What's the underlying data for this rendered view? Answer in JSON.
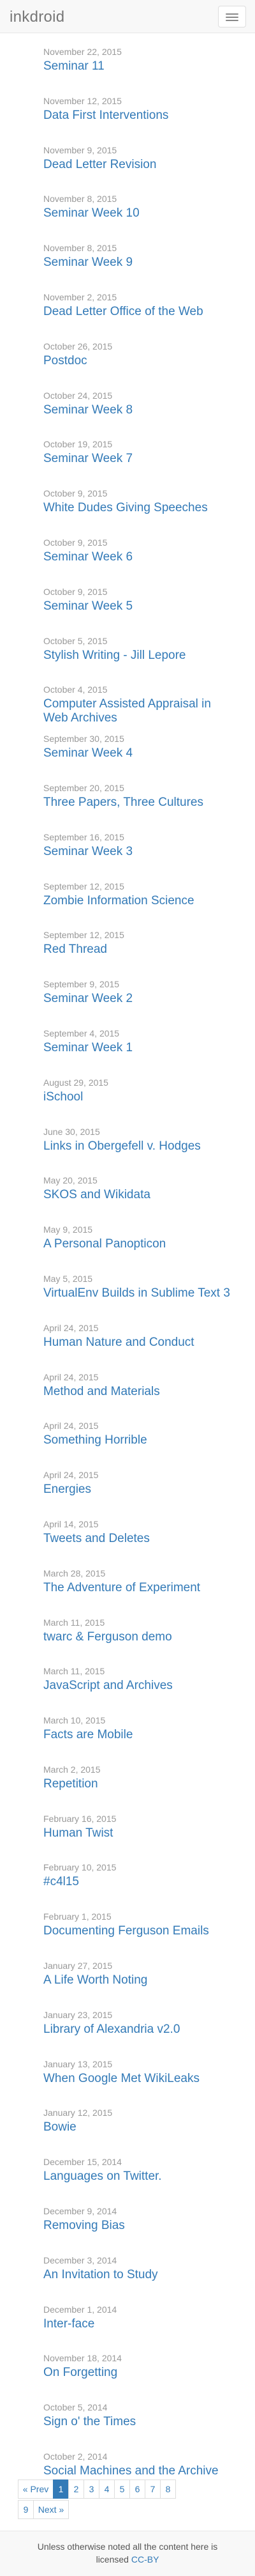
{
  "site": {
    "brand": "inkdroid",
    "menu_icon": "hamburger-menu-icon"
  },
  "posts": [
    {
      "date": "November 22, 2015",
      "title": "Seminar 11"
    },
    {
      "date": "November 12, 2015",
      "title": "Data First Interventions"
    },
    {
      "date": "November 9, 2015",
      "title": "Dead Letter Revision"
    },
    {
      "date": "November 8, 2015",
      "title": "Seminar Week 10"
    },
    {
      "date": "November 8, 2015",
      "title": "Seminar Week 9"
    },
    {
      "date": "November 2, 2015",
      "title": "Dead Letter Office of the Web"
    },
    {
      "date": "October 26, 2015",
      "title": "Postdoc"
    },
    {
      "date": "October 24, 2015",
      "title": "Seminar Week 8"
    },
    {
      "date": "October 19, 2015",
      "title": "Seminar Week 7"
    },
    {
      "date": "October 9, 2015",
      "title": "White Dudes Giving Speeches"
    },
    {
      "date": "October 9, 2015",
      "title": "Seminar Week 6"
    },
    {
      "date": "October 9, 2015",
      "title": "Seminar Week 5"
    },
    {
      "date": "October 5, 2015",
      "title": "Stylish Writing - Jill Lepore"
    },
    {
      "date": "October 4, 2015",
      "title": "Computer Assisted Appraisal in Web Archives"
    },
    {
      "date": "September 30, 2015",
      "title": "Seminar Week 4"
    },
    {
      "date": "September 20, 2015",
      "title": "Three Papers, Three Cultures"
    },
    {
      "date": "September 16, 2015",
      "title": "Seminar Week 3"
    },
    {
      "date": "September 12, 2015",
      "title": "Zombie Information Science"
    },
    {
      "date": "September 12, 2015",
      "title": "Red Thread"
    },
    {
      "date": "September 9, 2015",
      "title": "Seminar Week 2"
    },
    {
      "date": "September 4, 2015",
      "title": "Seminar Week 1"
    },
    {
      "date": "August 29, 2015",
      "title": "iSchool"
    },
    {
      "date": "June 30, 2015",
      "title": "Links in Obergefell v. Hodges"
    },
    {
      "date": "May 20, 2015",
      "title": "SKOS and Wikidata"
    },
    {
      "date": "May 9, 2015",
      "title": "A Personal Panopticon"
    },
    {
      "date": "May 5, 2015",
      "title": "VirtualEnv Builds in Sublime Text 3"
    },
    {
      "date": "April 24, 2015",
      "title": "Human Nature and Conduct"
    },
    {
      "date": "April 24, 2015",
      "title": "Method and Materials"
    },
    {
      "date": "April 24, 2015",
      "title": "Something Horrible"
    },
    {
      "date": "April 24, 2015",
      "title": "Energies"
    },
    {
      "date": "April 14, 2015",
      "title": "Tweets and Deletes"
    },
    {
      "date": "March 28, 2015",
      "title": "The Adventure of Experiment"
    },
    {
      "date": "March 11, 2015",
      "title": "twarc & Ferguson demo"
    },
    {
      "date": "March 11, 2015",
      "title": "JavaScript and Archives"
    },
    {
      "date": "March 10, 2015",
      "title": "Facts are Mobile"
    },
    {
      "date": "March 2, 2015",
      "title": "Repetition"
    },
    {
      "date": "February 16, 2015",
      "title": "Human Twist"
    },
    {
      "date": "February 10, 2015",
      "title": "#c4l15"
    },
    {
      "date": "February 1, 2015",
      "title": "Documenting Ferguson Emails"
    },
    {
      "date": "January 27, 2015",
      "title": "A Life Worth Noting"
    },
    {
      "date": "January 23, 2015",
      "title": "Library of Alexandria v2.0"
    },
    {
      "date": "January 13, 2015",
      "title": "When Google Met WikiLeaks"
    },
    {
      "date": "January 12, 2015",
      "title": "Bowie"
    },
    {
      "date": "December 15, 2014",
      "title": "Languages on Twitter."
    },
    {
      "date": "December 9, 2014",
      "title": "Removing Bias"
    },
    {
      "date": "December 3, 2014",
      "title": "An Invitation to Study"
    },
    {
      "date": "December 1, 2014",
      "title": "Inter-face"
    },
    {
      "date": "November 18, 2014",
      "title": "On Forgetting"
    },
    {
      "date": "October 5, 2014",
      "title": "Sign o' the Times"
    },
    {
      "date": "October 2, 2014",
      "title": "Social Machines and the Archive"
    }
  ],
  "pagination": {
    "prev": "« Prev",
    "next": "Next »",
    "pages": [
      "1",
      "2",
      "3",
      "4",
      "5",
      "6",
      "7",
      "8",
      "9"
    ],
    "current": "1"
  },
  "footer": {
    "text_line1": "Unless otherwise noted all the content here is",
    "text_line2_prefix": "licensed",
    "license_link": "CC-BY"
  },
  "colors": {
    "link": "#337ab7",
    "date": "#999999",
    "navbar_bg": "#f8f8f8",
    "brand": "#777777"
  }
}
